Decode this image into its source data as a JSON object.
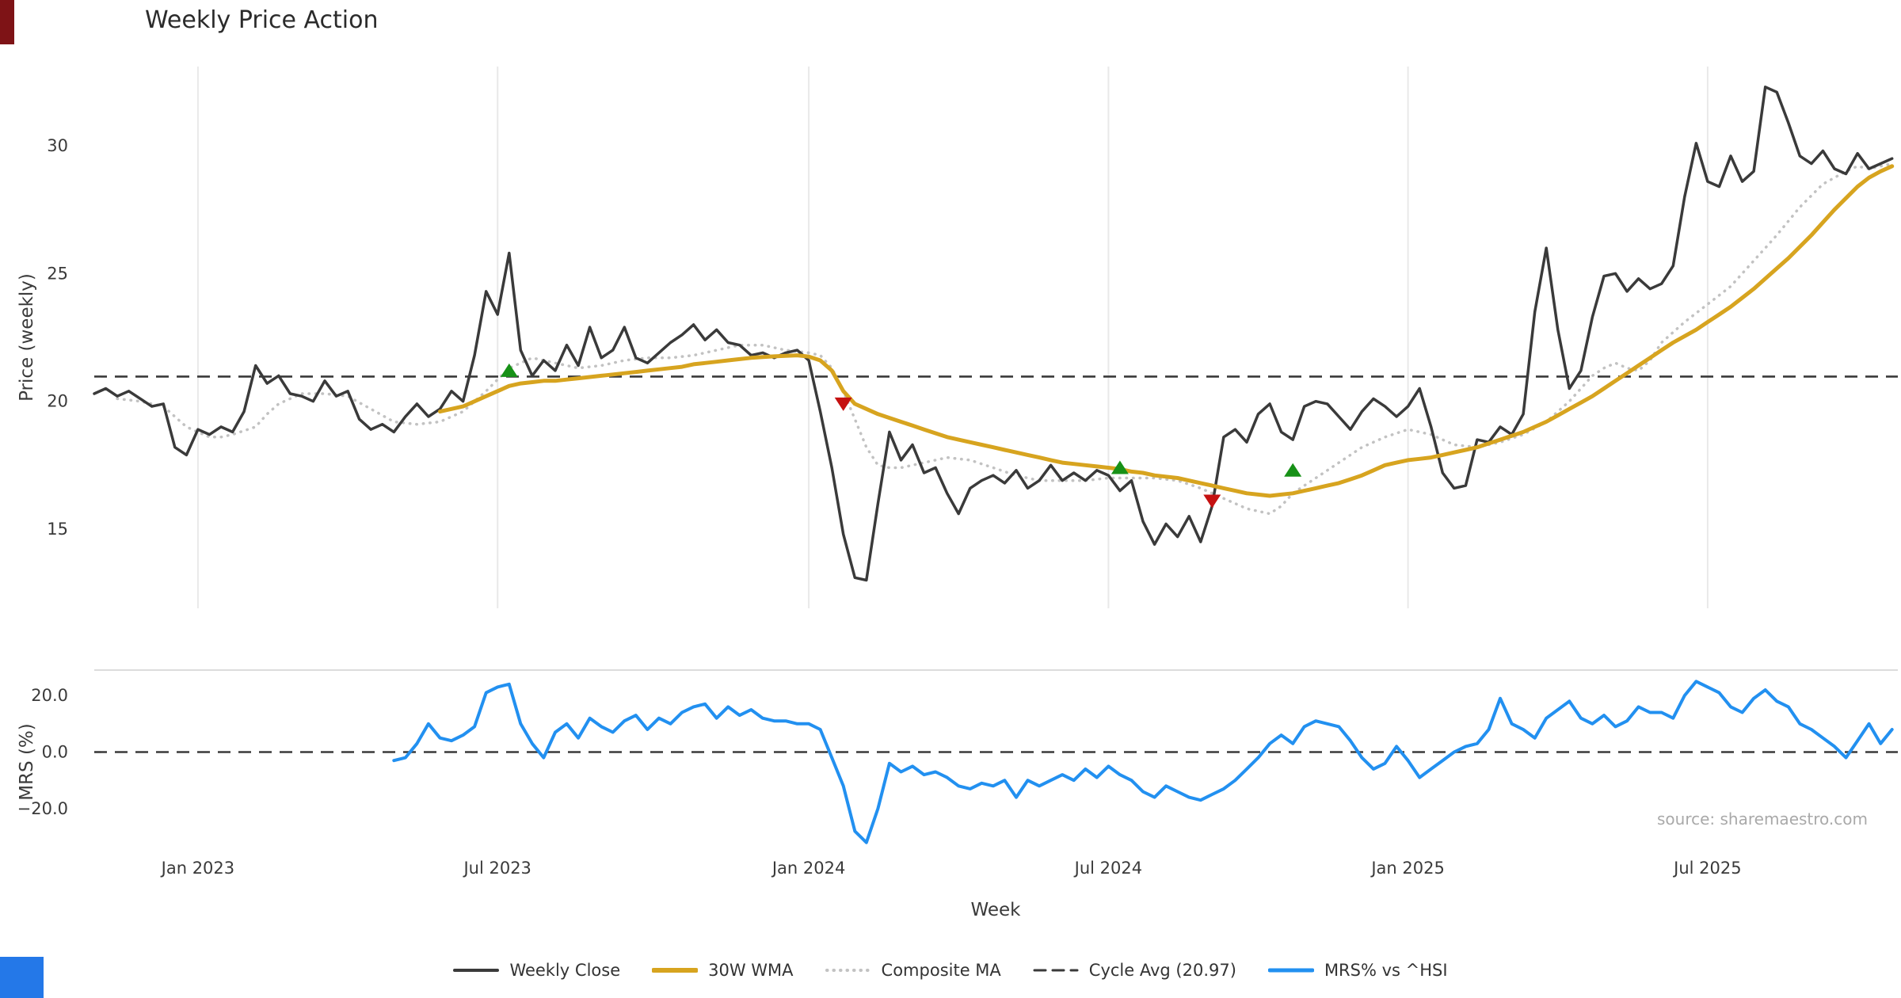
{
  "chart_data": {
    "type": "line",
    "title": "Weekly Price Action",
    "xlabel": "Week",
    "xlim": [
      0,
      156.5
    ],
    "xticks": {
      "weeks": [
        9,
        35,
        62,
        88,
        114,
        140
      ],
      "labels": [
        "Jan 2023",
        "Jul 2023",
        "Jan 2024",
        "Jul 2024",
        "Jan 2025",
        "Jul 2025"
      ]
    },
    "grid": {
      "vertical_at_xticks": true,
      "color": "#e9e9e9"
    },
    "panels": [
      {
        "id": "price",
        "ylabel": "Price (weekly)",
        "ylim": [
          11.9,
          33.1
        ],
        "yticks": [
          {
            "value": 30,
            "label": "30"
          },
          {
            "value": 25,
            "label": "25"
          },
          {
            "value": 20,
            "label": "20"
          },
          {
            "value": 15,
            "label": "15"
          }
        ],
        "cycle_avg": {
          "value": 20.97,
          "label": "Cycle Avg (20.97)"
        },
        "series": [
          {
            "name": "Weekly Close",
            "data_name": "weekly-close-line",
            "color": "#3a3a3a",
            "width": 3.5,
            "style": "solid",
            "z": 2,
            "start_week": 0,
            "values": [
              20.3,
              20.5,
              20.2,
              20.4,
              20.1,
              19.8,
              19.9,
              18.2,
              17.9,
              18.9,
              18.7,
              19.0,
              18.8,
              19.6,
              21.4,
              20.7,
              21.0,
              20.3,
              20.2,
              20.0,
              20.8,
              20.2,
              20.4,
              19.3,
              18.9,
              19.1,
              18.8,
              19.4,
              19.9,
              19.4,
              19.7,
              20.4,
              20.0,
              21.8,
              24.3,
              23.4,
              25.8,
              22.0,
              21.0,
              21.6,
              21.2,
              22.2,
              21.4,
              22.9,
              21.7,
              22.0,
              22.9,
              21.7,
              21.5,
              21.9,
              22.3,
              22.6,
              23.0,
              22.4,
              22.8,
              22.3,
              22.2,
              21.8,
              21.9,
              21.7,
              21.9,
              22.0,
              21.6,
              19.6,
              17.4,
              14.8,
              13.1,
              13.0,
              16.0,
              18.8,
              17.7,
              18.3,
              17.2,
              17.4,
              16.4,
              15.6,
              16.6,
              16.9,
              17.1,
              16.8,
              17.3,
              16.6,
              16.9,
              17.5,
              16.9,
              17.2,
              16.9,
              17.3,
              17.1,
              16.5,
              16.9,
              15.3,
              14.4,
              15.2,
              14.7,
              15.5,
              14.5,
              15.9,
              18.6,
              18.9,
              18.4,
              19.5,
              19.9,
              18.8,
              18.5,
              19.8,
              20.0,
              19.9,
              19.4,
              18.9,
              19.6,
              20.1,
              19.8,
              19.4,
              19.8,
              20.5,
              19.0,
              17.2,
              16.6,
              16.7,
              18.5,
              18.4,
              19.0,
              18.7,
              19.5,
              23.5,
              26.0,
              22.8,
              20.5,
              21.2,
              23.3,
              24.9,
              25.0,
              24.3,
              24.8,
              24.4,
              24.6,
              25.3,
              28.0,
              30.1,
              28.6,
              28.4,
              29.6,
              28.6,
              29.0,
              32.3,
              32.1,
              30.9,
              29.6,
              29.3,
              29.8,
              29.1,
              28.9,
              29.7,
              29.1,
              29.3,
              29.5
            ]
          },
          {
            "name": "30W WMA",
            "data_name": "wma-line",
            "color": "#d7a41f",
            "width": 5,
            "style": "solid",
            "z": 3,
            "start_week": 30,
            "values": [
              19.6,
              19.7,
              19.8,
              20.0,
              20.2,
              20.4,
              20.6,
              20.7,
              20.75,
              20.8,
              20.8,
              20.85,
              20.9,
              20.95,
              21.0,
              21.05,
              21.1,
              21.15,
              21.2,
              21.25,
              21.3,
              21.35,
              21.45,
              21.5,
              21.55,
              21.6,
              21.65,
              21.7,
              21.73,
              21.76,
              21.78,
              21.8,
              21.75,
              21.6,
              21.2,
              20.4,
              19.9,
              19.7,
              19.5,
              19.35,
              19.2,
              19.05,
              18.9,
              18.75,
              18.6,
              18.5,
              18.4,
              18.3,
              18.2,
              18.1,
              18.0,
              17.9,
              17.8,
              17.7,
              17.6,
              17.55,
              17.5,
              17.45,
              17.4,
              17.35,
              17.25,
              17.2,
              17.1,
              17.05,
              17.0,
              16.9,
              16.8,
              16.7,
              16.6,
              16.5,
              16.4,
              16.35,
              16.3,
              16.35,
              16.4,
              16.5,
              16.6,
              16.7,
              16.8,
              16.95,
              17.1,
              17.3,
              17.5,
              17.6,
              17.7,
              17.75,
              17.8,
              17.9,
              18.0,
              18.1,
              18.2,
              18.35,
              18.5,
              18.65,
              18.8,
              19.0,
              19.2,
              19.45,
              19.7,
              19.95,
              20.2,
              20.5,
              20.8,
              21.1,
              21.4,
              21.7,
              22.0,
              22.3,
              22.55,
              22.8,
              23.1,
              23.4,
              23.7,
              24.05,
              24.4,
              24.8,
              25.2,
              25.6,
              26.05,
              26.5,
              27.0,
              27.5,
              27.95,
              28.4,
              28.75,
              29.0,
              29.2
            ]
          },
          {
            "name": "Composite MA",
            "data_name": "composite-ma-line",
            "color": "#c2c2c2",
            "width": 3.5,
            "style": "dotted",
            "z": 1,
            "start_week": 2,
            "values": [
              20.1,
              20.05,
              20.0,
              19.9,
              19.8,
              19.4,
              19.0,
              18.8,
              18.6,
              18.6,
              18.7,
              18.85,
              19.0,
              19.5,
              19.9,
              20.1,
              20.3,
              20.3,
              20.3,
              20.25,
              20.2,
              19.95,
              19.7,
              19.45,
              19.2,
              19.15,
              19.1,
              19.15,
              19.2,
              19.4,
              19.6,
              20.0,
              20.4,
              20.85,
              21.3,
              21.5,
              21.7,
              21.6,
              21.5,
              21.4,
              21.3,
              21.35,
              21.4,
              21.5,
              21.6,
              21.65,
              21.7,
              21.7,
              21.7,
              21.75,
              21.8,
              21.9,
              22.0,
              22.1,
              22.2,
              22.2,
              22.2,
              22.1,
              22.0,
              21.95,
              21.9,
              21.8,
              21.3,
              20.4,
              19.3,
              18.2,
              17.5,
              17.4,
              17.4,
              17.5,
              17.6,
              17.7,
              17.8,
              17.75,
              17.7,
              17.55,
              17.4,
              17.25,
              17.1,
              17.0,
              16.9,
              16.9,
              16.9,
              16.9,
              16.9,
              16.95,
              17.0,
              17.0,
              17.0,
              17.0,
              17.0,
              16.95,
              16.9,
              16.75,
              16.6,
              16.4,
              16.2,
              16.0,
              15.8,
              15.7,
              15.6,
              15.9,
              16.4,
              16.7,
              17.0,
              17.3,
              17.6,
              17.9,
              18.2,
              18.4,
              18.6,
              18.75,
              18.9,
              18.8,
              18.7,
              18.5,
              18.3,
              18.25,
              18.2,
              18.3,
              18.4,
              18.55,
              18.7,
              18.95,
              19.2,
              19.6,
              20.0,
              20.5,
              21.0,
              21.3,
              21.5,
              21.3,
              21.2,
              21.6,
              22.3,
              22.7,
              23.1,
              23.45,
              23.8,
              24.15,
              24.5,
              25.0,
              25.5,
              26.0,
              26.5,
              27.05,
              27.6,
              28.05,
              28.5,
              28.75,
              29.0,
              29.2,
              29.1,
              29.2,
              29.3
            ]
          }
        ],
        "signals": [
          {
            "week": 36,
            "price": 21.2,
            "type": "buy"
          },
          {
            "week": 65,
            "price": 19.9,
            "type": "sell"
          },
          {
            "week": 89,
            "price": 17.4,
            "type": "buy"
          },
          {
            "week": 97,
            "price": 16.1,
            "type": "sell"
          },
          {
            "week": 104,
            "price": 17.3,
            "type": "buy"
          }
        ]
      },
      {
        "id": "mrs",
        "ylabel": "MRS (%)",
        "ylim": [
          -36,
          29
        ],
        "yticks": [
          {
            "value": 20,
            "label": "20.0"
          },
          {
            "value": 0,
            "label": "0.0"
          },
          {
            "value": -20,
            "label": "−20.0"
          }
        ],
        "zero_line": 0,
        "series": [
          {
            "name": "MRS% vs ^HSI",
            "data_name": "mrs-line",
            "color": "#2290f0",
            "width": 4,
            "style": "solid",
            "z": 1,
            "start_week": 26,
            "values": [
              -3,
              -2,
              3,
              10,
              5,
              4,
              6,
              9,
              21,
              23,
              24,
              10,
              3,
              -2,
              7,
              10,
              5,
              12,
              9,
              7,
              11,
              13,
              8,
              12,
              10,
              14,
              16,
              17,
              12,
              16,
              13,
              15,
              12,
              11,
              11,
              10,
              10,
              8,
              -2,
              -12,
              -28,
              -32,
              -20,
              -4,
              -7,
              -5,
              -8,
              -7,
              -9,
              -12,
              -13,
              -11,
              -12,
              -10,
              -16,
              -10,
              -12,
              -10,
              -8,
              -10,
              -6,
              -9,
              -5,
              -8,
              -10,
              -14,
              -16,
              -12,
              -14,
              -16,
              -17,
              -15,
              -13,
              -10,
              -6,
              -2,
              3,
              6,
              3,
              9,
              11,
              10,
              9,
              4,
              -2,
              -6,
              -4,
              2,
              -3,
              -9,
              -6,
              -3,
              0,
              2,
              3,
              8,
              19,
              10,
              8,
              5,
              12,
              15,
              18,
              12,
              10,
              13,
              9,
              11,
              16,
              14,
              14,
              12,
              20,
              25,
              23,
              21,
              16,
              14,
              19,
              22,
              18,
              16,
              10,
              8,
              5,
              2,
              -2,
              4,
              10,
              3,
              8
            ]
          }
        ]
      }
    ]
  },
  "legend": {
    "items": [
      {
        "label": "Weekly Close",
        "color": "#3a3a3a",
        "style": "solid",
        "width": 4
      },
      {
        "label": "30W WMA",
        "color": "#d7a41f",
        "style": "solid",
        "width": 6
      },
      {
        "label": "Composite MA",
        "color": "#c2c2c2",
        "style": "dotted",
        "width": 4
      },
      {
        "label": "Cycle Avg (20.97)",
        "color": "#3a3a3a",
        "style": "dashed",
        "width": 3
      },
      {
        "label": "MRS% vs ^HSI",
        "color": "#2290f0",
        "style": "solid",
        "width": 5
      }
    ]
  },
  "annotations": {
    "source": "source: sharemaestro.com"
  },
  "signal_colors": {
    "buy": "#179117",
    "sell": "#c51111"
  }
}
